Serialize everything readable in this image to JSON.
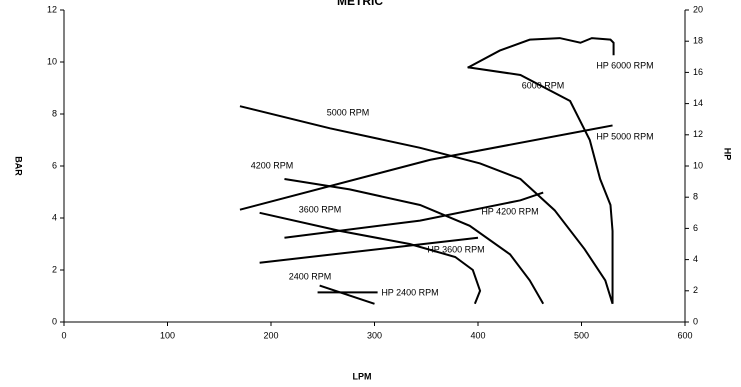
{
  "chart_data": {
    "type": "line",
    "title": "METRIC",
    "x_label": "LPM",
    "y_label": "BAR",
    "y2_label": "HP",
    "xlim": [
      0,
      600
    ],
    "xticks": [
      0,
      100,
      200,
      300,
      400,
      500,
      600
    ],
    "ylim": [
      0,
      12
    ],
    "yticks": [
      0,
      2,
      4,
      6,
      8,
      10,
      12
    ],
    "y2lim": [
      0,
      20
    ],
    "y2ticks": [
      0,
      2,
      4,
      6,
      8,
      10,
      12,
      14,
      16,
      18,
      20
    ],
    "series": [
      {
        "name": "6000 RPM",
        "color": "#000000",
        "x": [
          390,
          441,
          489,
          508,
          518,
          528,
          530,
          530
        ],
        "values": [
          9.8,
          9.5,
          8.5,
          7.0,
          5.5,
          4.5,
          3.5,
          0.7
        ]
      },
      {
        "name": "HP 6000 RPM",
        "color": "#000000",
        "axis": "y2",
        "x": [
          390,
          421,
          450,
          479,
          499,
          510,
          528,
          531,
          531
        ],
        "values": [
          16.3,
          17.4,
          18.1,
          18.2,
          17.9,
          18.2,
          18.1,
          17.9,
          17.1
        ]
      },
      {
        "name": "5000 RPM",
        "color": "#000000",
        "x": [
          170,
          257,
          344,
          402,
          441,
          474,
          503,
          523,
          530
        ],
        "values": [
          8.3,
          7.45,
          6.7,
          6.1,
          5.5,
          4.3,
          2.8,
          1.6,
          0.7
        ]
      },
      {
        "name": "HP 5000 RPM",
        "color": "#000000",
        "axis": "y2",
        "x": [
          170,
          354,
          530
        ],
        "values": [
          7.2,
          10.4,
          12.6
        ]
      },
      {
        "name": "4200 RPM",
        "color": "#000000",
        "x": [
          213,
          276,
          344,
          392,
          431,
          450,
          463
        ],
        "values": [
          5.5,
          5.1,
          4.5,
          3.7,
          2.6,
          1.6,
          0.7
        ]
      },
      {
        "name": "HP 4200 RPM",
        "color": "#000000",
        "axis": "y2",
        "x": [
          213,
          344,
          441,
          463
        ],
        "values": [
          5.4,
          6.5,
          7.8,
          8.3
        ]
      },
      {
        "name": "3600 RPM",
        "color": "#000000",
        "x": [
          189,
          267,
          334,
          378,
          395,
          402,
          397
        ],
        "values": [
          4.2,
          3.5,
          3.0,
          2.5,
          2.0,
          1.2,
          0.7
        ]
      },
      {
        "name": "HP 3600 RPM",
        "color": "#000000",
        "axis": "y2",
        "x": [
          189,
          400
        ],
        "values": [
          3.8,
          5.4
        ]
      },
      {
        "name": "2400 RPM",
        "color": "#000000",
        "x": [
          247,
          300
        ],
        "values": [
          1.4,
          0.7
        ]
      },
      {
        "name": "HP 2400 RPM",
        "color": "#000000",
        "axis": "y2",
        "x": [
          245,
          303
        ],
        "values": [
          1.9,
          1.9
        ]
      }
    ]
  }
}
